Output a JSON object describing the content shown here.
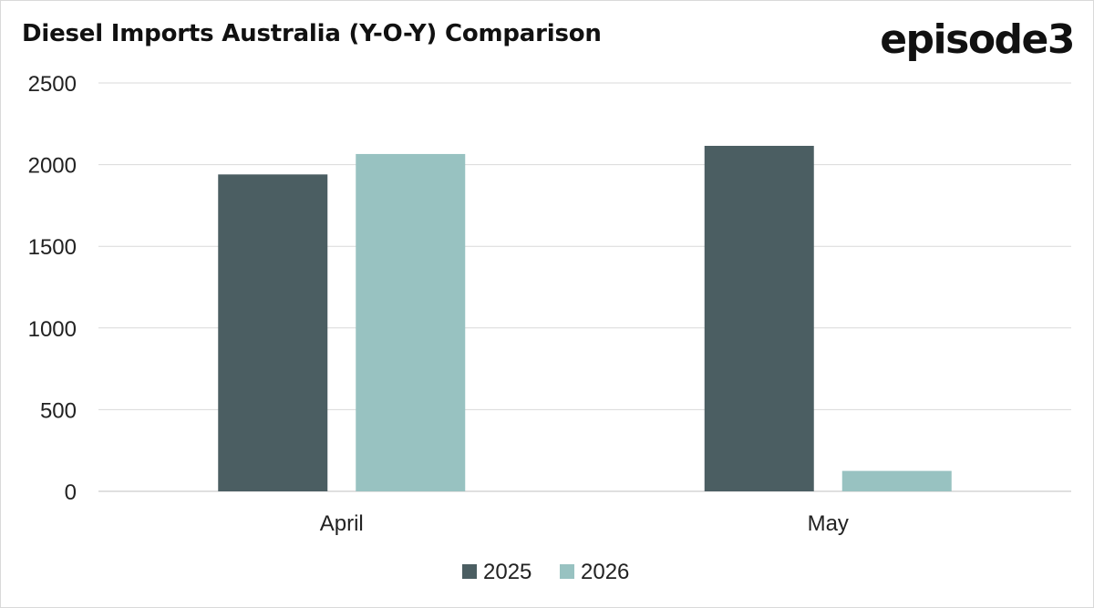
{
  "header": {
    "title": "Diesel Imports Australia (Y-O-Y) Comparison",
    "brand": "episode3"
  },
  "chart_data": {
    "type": "bar",
    "title": "Diesel Imports Australia (Y-O-Y) Comparison",
    "xlabel": "",
    "ylabel": "",
    "categories": [
      "April",
      "May"
    ],
    "series": [
      {
        "name": "2025",
        "values": [
          1940,
          2115
        ],
        "color": "#4b5e62"
      },
      {
        "name": "2026",
        "values": [
          2065,
          125
        ],
        "color": "#98c2c1"
      }
    ],
    "ylim": [
      0,
      2500
    ],
    "yticks": [
      0,
      500,
      1000,
      1500,
      2000,
      2500
    ],
    "grid": true,
    "legend": "bottom"
  }
}
